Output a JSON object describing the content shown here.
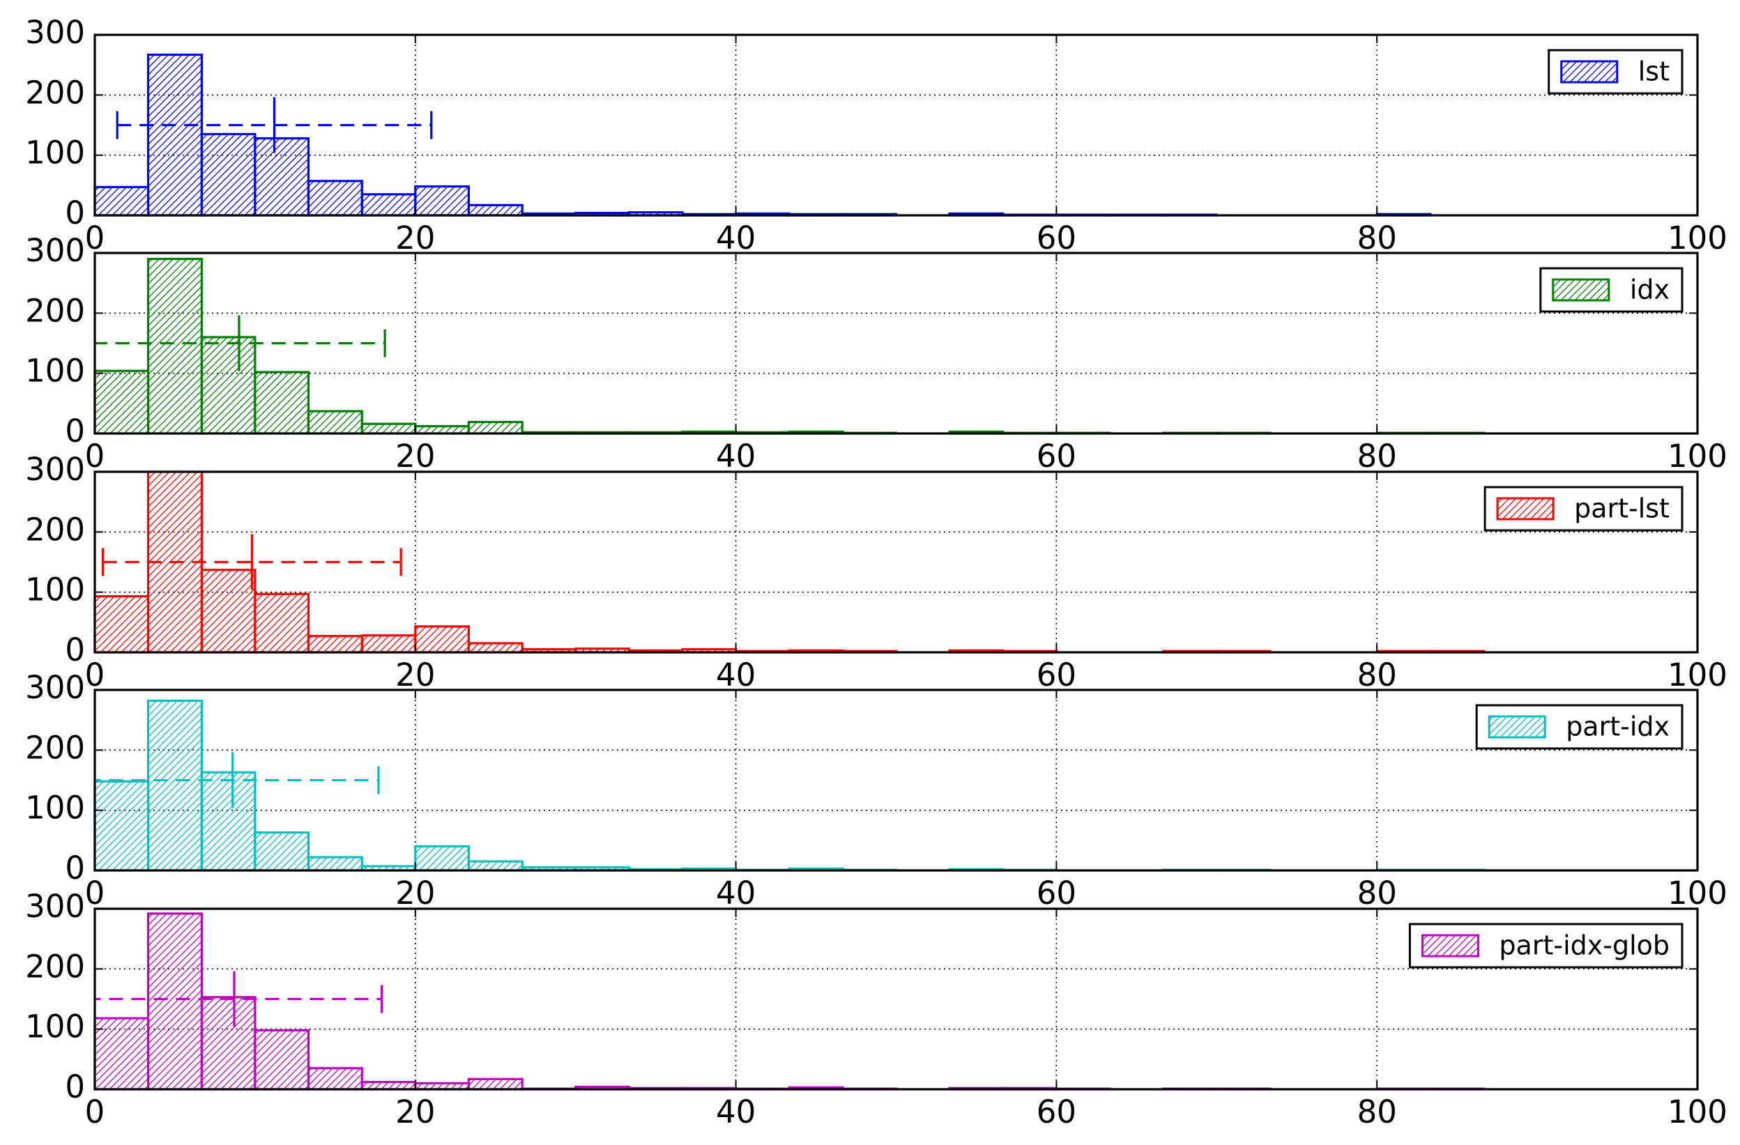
{
  "chart_data": [
    {
      "type": "histogram",
      "bins": [
        0,
        3.33,
        6.67,
        10,
        13.33,
        16.67,
        20,
        23.33,
        26.67,
        30,
        33.33,
        36.67,
        40,
        43.33,
        46.67,
        50,
        53.33,
        56.67,
        60,
        63.33,
        66.67,
        70,
        73.33,
        76.67,
        80,
        83.33,
        86.67,
        90,
        93.33,
        96.67,
        100
      ],
      "series": [
        {
          "name": "lst",
          "color": "#0000ff",
          "values": [
            47,
            267,
            135,
            128,
            57,
            35,
            48,
            17,
            3,
            4,
            5,
            2,
            3,
            2,
            2,
            0,
            3,
            1,
            1,
            1,
            1,
            0,
            0,
            0,
            2,
            0,
            0,
            0,
            0,
            0
          ]
        }
      ],
      "errorbar": {
        "x": 11.2,
        "y": 150,
        "xerr": 9.8
      },
      "xlim": [
        0,
        100
      ],
      "ylim": [
        0,
        300
      ],
      "xticks": [
        0,
        20,
        40,
        60,
        80,
        100
      ],
      "yticks": [
        0,
        100,
        200,
        300
      ],
      "grid": true,
      "legend": "upper right"
    },
    {
      "type": "histogram",
      "bins": [
        0,
        3.33,
        6.67,
        10,
        13.33,
        16.67,
        20,
        23.33,
        26.67,
        30,
        33.33,
        36.67,
        40,
        43.33,
        46.67,
        50,
        53.33,
        56.67,
        60,
        63.33,
        66.67,
        70,
        73.33,
        76.67,
        80,
        83.33,
        86.67,
        90,
        93.33,
        96.67,
        100
      ],
      "series": [
        {
          "name": "idx",
          "color": "#008000",
          "values": [
            104,
            290,
            160,
            102,
            37,
            16,
            12,
            19,
            2,
            2,
            2,
            3,
            2,
            3,
            1,
            0,
            3,
            1,
            1,
            0,
            1,
            1,
            0,
            0,
            1,
            1,
            0,
            0,
            0,
            0
          ]
        }
      ],
      "errorbar": {
        "x": 9.0,
        "y": 150,
        "xerr": 9.1
      },
      "xlim": [
        0,
        100
      ],
      "ylim": [
        0,
        300
      ],
      "xticks": [
        0,
        20,
        40,
        60,
        80,
        100
      ],
      "yticks": [
        0,
        100,
        200,
        300
      ],
      "grid": true,
      "legend": "upper right"
    },
    {
      "type": "histogram",
      "bins": [
        0,
        3.33,
        6.67,
        10,
        13.33,
        16.67,
        20,
        23.33,
        26.67,
        30,
        33.33,
        36.67,
        40,
        43.33,
        46.67,
        50,
        53.33,
        56.67,
        60,
        63.33,
        66.67,
        70,
        73.33,
        76.67,
        80,
        83.33,
        86.67,
        90,
        93.33,
        96.67,
        100
      ],
      "series": [
        {
          "name": "part-lst",
          "color": "#ff0000",
          "values": [
            93,
            300,
            137,
            97,
            27,
            28,
            43,
            15,
            5,
            6,
            3,
            5,
            2,
            3,
            2,
            0,
            3,
            2,
            0,
            0,
            2,
            2,
            0,
            0,
            2,
            2,
            0,
            0,
            0,
            0
          ]
        }
      ],
      "errorbar": {
        "x": 9.8,
        "y": 150,
        "xerr": 9.3
      },
      "xlim": [
        0,
        100
      ],
      "ylim": [
        0,
        300
      ],
      "xticks": [
        0,
        20,
        40,
        60,
        80,
        100
      ],
      "yticks": [
        0,
        100,
        200,
        300
      ],
      "grid": true,
      "legend": "upper right"
    },
    {
      "type": "histogram",
      "bins": [
        0,
        3.33,
        6.67,
        10,
        13.33,
        16.67,
        20,
        23.33,
        26.67,
        30,
        33.33,
        36.67,
        40,
        43.33,
        46.67,
        50,
        53.33,
        56.67,
        60,
        63.33,
        66.67,
        70,
        73.33,
        76.67,
        80,
        83.33,
        86.67,
        90,
        93.33,
        96.67,
        100
      ],
      "series": [
        {
          "name": "part-idx",
          "color": "#00bfbf",
          "values": [
            148,
            282,
            163,
            63,
            22,
            7,
            40,
            15,
            5,
            5,
            2,
            3,
            1,
            3,
            1,
            0,
            2,
            1,
            0,
            0,
            1,
            1,
            0,
            0,
            1,
            1,
            0,
            0,
            0,
            0
          ]
        }
      ],
      "errorbar": {
        "x": 8.6,
        "y": 150,
        "xerr": 9.1
      },
      "xlim": [
        0,
        100
      ],
      "ylim": [
        0,
        300
      ],
      "xticks": [
        0,
        20,
        40,
        60,
        80,
        100
      ],
      "yticks": [
        0,
        100,
        200,
        300
      ],
      "grid": true,
      "legend": "upper right"
    },
    {
      "type": "histogram",
      "bins": [
        0,
        3.33,
        6.67,
        10,
        13.33,
        16.67,
        20,
        23.33,
        26.67,
        30,
        33.33,
        36.67,
        40,
        43.33,
        46.67,
        50,
        53.33,
        56.67,
        60,
        63.33,
        66.67,
        70,
        73.33,
        76.67,
        80,
        83.33,
        86.67,
        90,
        93.33,
        96.67,
        100
      ],
      "series": [
        {
          "name": "part-idx-glob",
          "color": "#bf00bf",
          "values": [
            118,
            292,
            153,
            98,
            35,
            12,
            10,
            17,
            1,
            4,
            2,
            2,
            1,
            3,
            1,
            0,
            2,
            2,
            1,
            0,
            1,
            1,
            0,
            0,
            1,
            1,
            0,
            0,
            0,
            0
          ]
        }
      ],
      "errorbar": {
        "x": 8.7,
        "y": 150,
        "xerr": 9.2
      },
      "xlim": [
        0,
        100
      ],
      "ylim": [
        0,
        300
      ],
      "xticks": [
        0,
        20,
        40,
        60,
        80,
        100
      ],
      "yticks": [
        0,
        100,
        200,
        300
      ],
      "grid": true,
      "legend": "upper right"
    }
  ]
}
